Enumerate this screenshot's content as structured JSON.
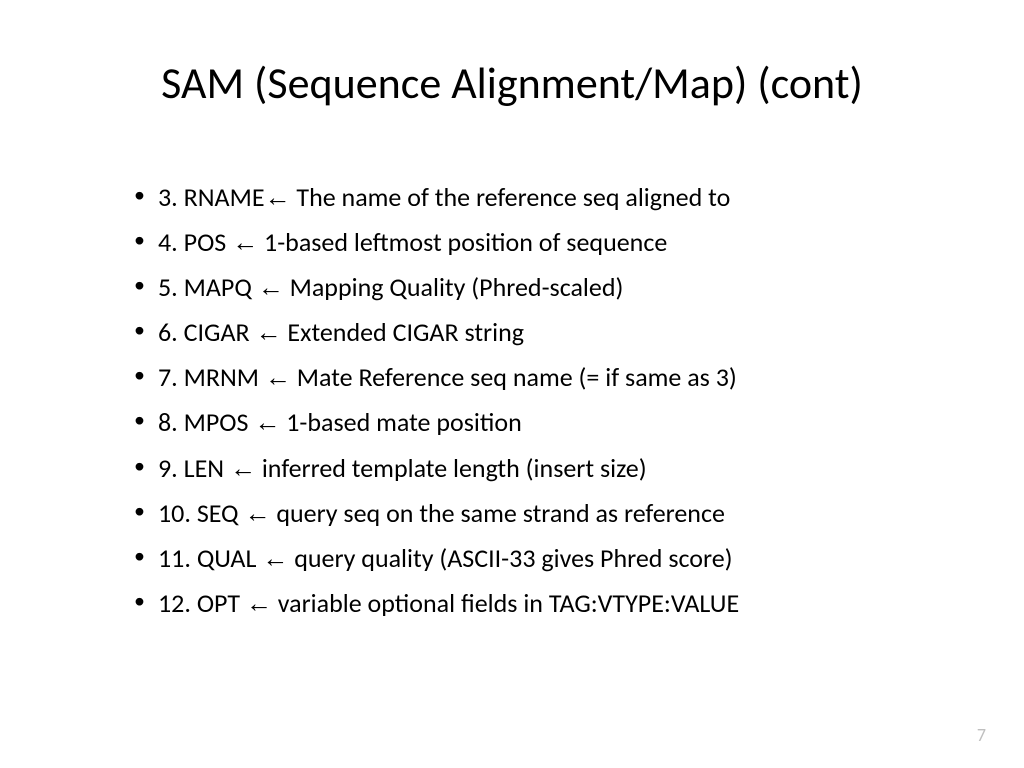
{
  "slide": {
    "title": "SAM (Sequence Alignment/Map) (cont)",
    "title_fontsize": 44,
    "title_color": "#000000",
    "bullet_fontsize": 26,
    "bullet_color": "#000000",
    "arrow_glyph": "←",
    "items": [
      {
        "num": "3.",
        "field": "RNAME",
        "desc": "The name of the reference seq aligned to",
        "nospace_before_arrow": true
      },
      {
        "num": "4.",
        "field": "POS",
        "desc": "1-based leftmost position of sequence"
      },
      {
        "num": "5.",
        "field": "MAPQ",
        "desc": "Mapping Quality (Phred-scaled)"
      },
      {
        "num": "6.",
        "field": "CIGAR",
        "desc": "Extended CIGAR string"
      },
      {
        "num": "7.",
        "field": "MRNM",
        "desc": "Mate Reference seq name (= if same as 3)"
      },
      {
        "num": "8.",
        "field": "MPOS",
        "desc": "1-based mate position"
      },
      {
        "num": "9.",
        "field": "LEN",
        "desc": "inferred template length (insert size)"
      },
      {
        "num": "10.",
        "field": "SEQ",
        "desc": "query seq on the same strand as reference"
      },
      {
        "num": "11.",
        "field": "QUAL",
        "desc": "query quality (ASCII-33 gives Phred score)"
      },
      {
        "num": "12.",
        "field": "OPT",
        "desc": "variable optional fields in TAG:VTYPE:VALUE"
      }
    ],
    "background_color": "#ffffff",
    "page_number": "7",
    "page_number_color": "#bfbfbf",
    "page_number_fontsize": 18
  }
}
